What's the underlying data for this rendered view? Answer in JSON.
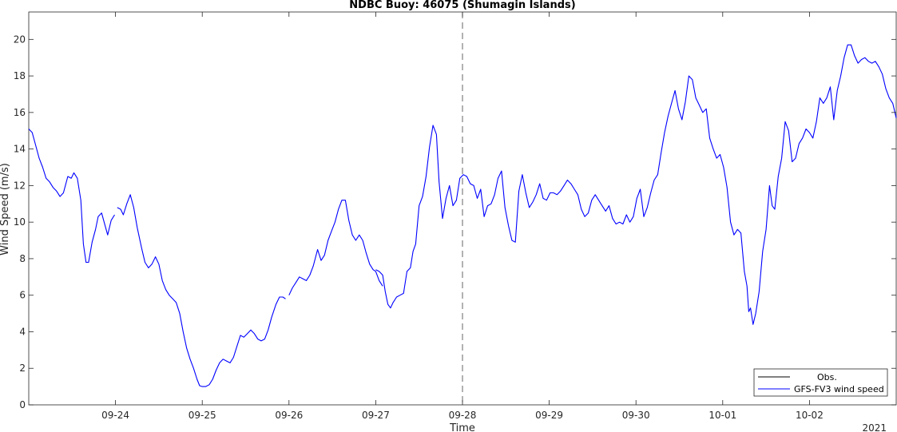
{
  "chart_data": {
    "type": "line",
    "title": "NDBC Buoy: 46075 (Shumagin Islands)",
    "xlabel": "Time",
    "ylabel": "Wind Speed (m/s)",
    "year_label": "2021",
    "xlim": [
      23.0,
      33.0
    ],
    "ylim": [
      0,
      21.5
    ],
    "x_ticks": [
      {
        "x": 24,
        "label": "09-24"
      },
      {
        "x": 25,
        "label": "09-25"
      },
      {
        "x": 26,
        "label": "09-26"
      },
      {
        "x": 27,
        "label": "09-27"
      },
      {
        "x": 28,
        "label": "09-28"
      },
      {
        "x": 29,
        "label": "09-29"
      },
      {
        "x": 30,
        "label": "09-30"
      },
      {
        "x": 31,
        "label": "10-01"
      },
      {
        "x": 32,
        "label": "10-02"
      }
    ],
    "y_ticks": [
      0,
      2,
      4,
      6,
      8,
      10,
      12,
      14,
      16,
      18,
      20
    ],
    "vline_x": 28,
    "legend_position": "bottom-right",
    "colors": {
      "obs": "#000000",
      "model": "#0000ff",
      "axis": "#262626",
      "vline": "#555555"
    },
    "series": [
      {
        "name": "Obs.",
        "points": []
      },
      {
        "name": "GFS-FV3 wind speed",
        "segments": [
          [
            [
              23.0,
              15.1
            ],
            [
              23.04,
              14.9
            ],
            [
              23.08,
              14.2
            ],
            [
              23.12,
              13.5
            ],
            [
              23.16,
              13.0
            ],
            [
              23.2,
              12.4
            ],
            [
              23.24,
              12.2
            ],
            [
              23.28,
              11.9
            ],
            [
              23.32,
              11.7
            ],
            [
              23.36,
              11.4
            ],
            [
              23.4,
              11.6
            ],
            [
              23.45,
              12.5
            ],
            [
              23.49,
              12.4
            ],
            [
              23.52,
              12.7
            ],
            [
              23.56,
              12.4
            ],
            [
              23.6,
              11.2
            ],
            [
              23.63,
              8.8
            ],
            [
              23.66,
              7.8
            ],
            [
              23.69,
              7.8
            ],
            [
              23.73,
              8.9
            ],
            [
              23.77,
              9.6
            ],
            [
              23.8,
              10.3
            ],
            [
              23.84,
              10.5
            ],
            [
              23.88,
              9.8
            ],
            [
              23.91,
              9.3
            ],
            [
              23.95,
              10.1
            ],
            [
              23.99,
              10.4
            ]
          ],
          [
            [
              24.02,
              10.8
            ],
            [
              24.06,
              10.7
            ],
            [
              24.09,
              10.4
            ],
            [
              24.13,
              11.0
            ],
            [
              24.17,
              11.5
            ],
            [
              24.21,
              10.8
            ],
            [
              24.25,
              9.7
            ],
            [
              24.3,
              8.6
            ],
            [
              24.34,
              7.8
            ],
            [
              24.38,
              7.5
            ],
            [
              24.42,
              7.7
            ],
            [
              24.46,
              8.1
            ],
            [
              24.5,
              7.7
            ],
            [
              24.54,
              6.8
            ],
            [
              24.58,
              6.3
            ],
            [
              24.62,
              6.0
            ],
            [
              24.66,
              5.8
            ],
            [
              24.7,
              5.6
            ],
            [
              24.74,
              5.0
            ],
            [
              24.78,
              4.0
            ],
            [
              24.82,
              3.1
            ],
            [
              24.86,
              2.5
            ],
            [
              24.9,
              2.0
            ],
            [
              24.94,
              1.4
            ],
            [
              24.97,
              1.05
            ],
            [
              25.0,
              1.0
            ],
            [
              25.04,
              1.0
            ],
            [
              25.08,
              1.1
            ],
            [
              25.12,
              1.4
            ],
            [
              25.16,
              1.9
            ],
            [
              25.2,
              2.3
            ],
            [
              25.24,
              2.5
            ],
            [
              25.28,
              2.4
            ],
            [
              25.32,
              2.3
            ],
            [
              25.36,
              2.6
            ],
            [
              25.4,
              3.2
            ],
            [
              25.44,
              3.8
            ],
            [
              25.48,
              3.7
            ],
            [
              25.52,
              3.9
            ],
            [
              25.56,
              4.1
            ],
            [
              25.6,
              3.9
            ],
            [
              25.64,
              3.6
            ],
            [
              25.68,
              3.5
            ],
            [
              25.72,
              3.6
            ],
            [
              25.76,
              4.1
            ],
            [
              25.8,
              4.8
            ],
            [
              25.85,
              5.5
            ],
            [
              25.89,
              5.9
            ],
            [
              25.93,
              5.9
            ],
            [
              25.96,
              5.8
            ]
          ],
          [
            [
              26.0,
              6.0
            ],
            [
              26.04,
              6.4
            ],
            [
              26.08,
              6.7
            ],
            [
              26.12,
              7.0
            ],
            [
              26.16,
              6.9
            ],
            [
              26.2,
              6.8
            ],
            [
              26.24,
              7.1
            ],
            [
              26.28,
              7.6
            ],
            [
              26.33,
              8.5
            ],
            [
              26.37,
              7.9
            ],
            [
              26.41,
              8.2
            ],
            [
              26.45,
              9.0
            ],
            [
              26.49,
              9.5
            ],
            [
              26.53,
              10.0
            ],
            [
              26.57,
              10.7
            ],
            [
              26.61,
              11.2
            ],
            [
              26.65,
              11.2
            ],
            [
              26.69,
              10.1
            ],
            [
              26.73,
              9.3
            ],
            [
              26.77,
              9.0
            ],
            [
              26.81,
              9.3
            ],
            [
              26.85,
              9.0
            ],
            [
              26.89,
              8.3
            ],
            [
              26.93,
              7.7
            ],
            [
              26.97,
              7.4
            ],
            [
              27.0,
              7.3
            ],
            [
              27.04,
              6.8
            ],
            [
              27.08,
              6.5
            ]
          ],
          [
            [
              27.0,
              7.4
            ],
            [
              27.04,
              7.3
            ],
            [
              27.08,
              7.1
            ],
            [
              27.11,
              6.2
            ],
            [
              27.14,
              5.5
            ],
            [
              27.17,
              5.3
            ],
            [
              27.2,
              5.6
            ],
            [
              27.24,
              5.9
            ],
            [
              27.28,
              6.0
            ],
            [
              27.32,
              6.1
            ],
            [
              27.36,
              7.3
            ],
            [
              27.4,
              7.5
            ],
            [
              27.43,
              8.4
            ],
            [
              27.46,
              8.8
            ],
            [
              27.5,
              10.9
            ],
            [
              27.54,
              11.4
            ],
            [
              27.58,
              12.5
            ],
            [
              27.62,
              14.1
            ],
            [
              27.66,
              15.3
            ],
            [
              27.7,
              14.8
            ],
            [
              27.73,
              12.2
            ],
            [
              27.77,
              10.2
            ],
            [
              27.81,
              11.3
            ],
            [
              27.85,
              12.0
            ],
            [
              27.89,
              10.9
            ],
            [
              27.93,
              11.2
            ],
            [
              27.97,
              12.4
            ],
            [
              28.01,
              12.6
            ],
            [
              28.05,
              12.5
            ],
            [
              28.09,
              12.1
            ],
            [
              28.13,
              12.0
            ],
            [
              28.17,
              11.3
            ],
            [
              28.21,
              11.8
            ],
            [
              28.25,
              10.3
            ],
            [
              28.29,
              10.9
            ],
            [
              28.33,
              11.0
            ],
            [
              28.37,
              11.5
            ],
            [
              28.41,
              12.4
            ],
            [
              28.45,
              12.8
            ],
            [
              28.49,
              10.8
            ],
            [
              28.53,
              9.8
            ],
            [
              28.57,
              9.0
            ],
            [
              28.61,
              8.9
            ],
            [
              28.65,
              11.7
            ],
            [
              28.69,
              12.6
            ],
            [
              28.73,
              11.6
            ],
            [
              28.77,
              10.8
            ],
            [
              28.81,
              11.1
            ],
            [
              28.85,
              11.5
            ],
            [
              28.89,
              12.1
            ],
            [
              28.93,
              11.3
            ],
            [
              28.97,
              11.2
            ],
            [
              29.01,
              11.6
            ],
            [
              29.05,
              11.6
            ],
            [
              29.09,
              11.5
            ],
            [
              29.13,
              11.7
            ],
            [
              29.17,
              12.0
            ],
            [
              29.21,
              12.3
            ],
            [
              29.25,
              12.1
            ],
            [
              29.29,
              11.8
            ],
            [
              29.33,
              11.5
            ],
            [
              29.37,
              10.7
            ],
            [
              29.41,
              10.3
            ],
            [
              29.45,
              10.5
            ],
            [
              29.49,
              11.2
            ],
            [
              29.53,
              11.5
            ],
            [
              29.57,
              11.2
            ],
            [
              29.61,
              10.9
            ],
            [
              29.65,
              10.6
            ],
            [
              29.69,
              10.9
            ],
            [
              29.73,
              10.2
            ],
            [
              29.77,
              9.9
            ],
            [
              29.81,
              10.0
            ],
            [
              29.85,
              9.9
            ],
            [
              29.89,
              10.4
            ],
            [
              29.93,
              10.0
            ],
            [
              29.97,
              10.3
            ],
            [
              30.01,
              11.3
            ],
            [
              30.05,
              11.8
            ],
            [
              30.09,
              10.3
            ],
            [
              30.13,
              10.8
            ],
            [
              30.17,
              11.6
            ],
            [
              30.21,
              12.3
            ],
            [
              30.25,
              12.6
            ],
            [
              30.29,
              13.8
            ],
            [
              30.33,
              14.9
            ],
            [
              30.37,
              15.8
            ],
            [
              30.41,
              16.5
            ],
            [
              30.45,
              17.2
            ],
            [
              30.49,
              16.2
            ],
            [
              30.53,
              15.6
            ],
            [
              30.57,
              16.6
            ],
            [
              30.61,
              18.0
            ],
            [
              30.65,
              17.8
            ],
            [
              30.69,
              16.8
            ],
            [
              30.73,
              16.4
            ],
            [
              30.77,
              16.0
            ],
            [
              30.81,
              16.2
            ],
            [
              30.85,
              14.6
            ],
            [
              30.89,
              14.0
            ],
            [
              30.93,
              13.5
            ],
            [
              30.97,
              13.7
            ],
            [
              31.01,
              13.0
            ],
            [
              31.05,
              11.9
            ],
            [
              31.09,
              10.0
            ],
            [
              31.13,
              9.3
            ],
            [
              31.17,
              9.6
            ],
            [
              31.21,
              9.4
            ],
            [
              31.25,
              7.3
            ],
            [
              31.28,
              6.5
            ],
            [
              31.3,
              5.1
            ],
            [
              31.32,
              5.3
            ],
            [
              31.35,
              4.4
            ],
            [
              31.38,
              5.0
            ],
            [
              31.42,
              6.2
            ],
            [
              31.46,
              8.4
            ],
            [
              31.5,
              9.6
            ],
            [
              31.54,
              12.0
            ],
            [
              31.57,
              10.9
            ],
            [
              31.6,
              10.7
            ],
            [
              31.64,
              12.5
            ],
            [
              31.68,
              13.5
            ],
            [
              31.72,
              15.5
            ],
            [
              31.76,
              15.0
            ],
            [
              31.8,
              13.3
            ],
            [
              31.84,
              13.5
            ],
            [
              31.88,
              14.3
            ],
            [
              31.92,
              14.6
            ],
            [
              31.96,
              15.1
            ],
            [
              32.0,
              14.9
            ],
            [
              32.04,
              14.6
            ],
            [
              32.08,
              15.5
            ],
            [
              32.12,
              16.8
            ],
            [
              32.16,
              16.5
            ],
            [
              32.2,
              16.8
            ],
            [
              32.24,
              17.4
            ],
            [
              32.28,
              15.6
            ],
            [
              32.32,
              17.2
            ],
            [
              32.36,
              18.0
            ],
            [
              32.4,
              19.0
            ],
            [
              32.44,
              19.7
            ],
            [
              32.48,
              19.7
            ],
            [
              32.52,
              19.1
            ],
            [
              32.56,
              18.7
            ],
            [
              32.6,
              18.9
            ],
            [
              32.64,
              19.0
            ],
            [
              32.68,
              18.8
            ],
            [
              32.72,
              18.7
            ],
            [
              32.76,
              18.8
            ],
            [
              32.8,
              18.5
            ],
            [
              32.84,
              18.1
            ],
            [
              32.88,
              17.3
            ],
            [
              32.92,
              16.8
            ],
            [
              32.96,
              16.5
            ],
            [
              33.0,
              15.7
            ]
          ]
        ]
      }
    ]
  }
}
